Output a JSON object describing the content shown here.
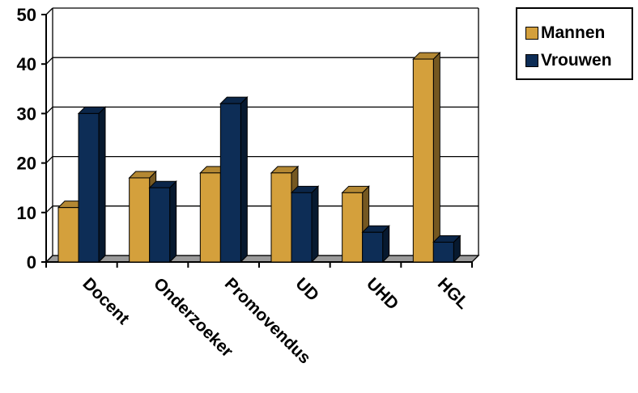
{
  "chart_data": {
    "type": "bar",
    "categories": [
      "Docent",
      "Onderzoeker",
      "Promovendus",
      "UD",
      "UHD",
      "HGL"
    ],
    "series": [
      {
        "name": "Mannen",
        "values": [
          11,
          17,
          18,
          18,
          14,
          41
        ],
        "color": "#d4a03c"
      },
      {
        "name": "Vrouwen",
        "values": [
          30,
          15,
          32,
          14,
          6,
          4
        ],
        "color": "#0d2d56"
      }
    ],
    "y_ticks": [
      "0",
      "10",
      "20",
      "30",
      "40",
      "50"
    ],
    "ylim": [
      0,
      50
    ],
    "grid": true,
    "legend_position": "top-right",
    "style": "3d-clustered-bar"
  }
}
